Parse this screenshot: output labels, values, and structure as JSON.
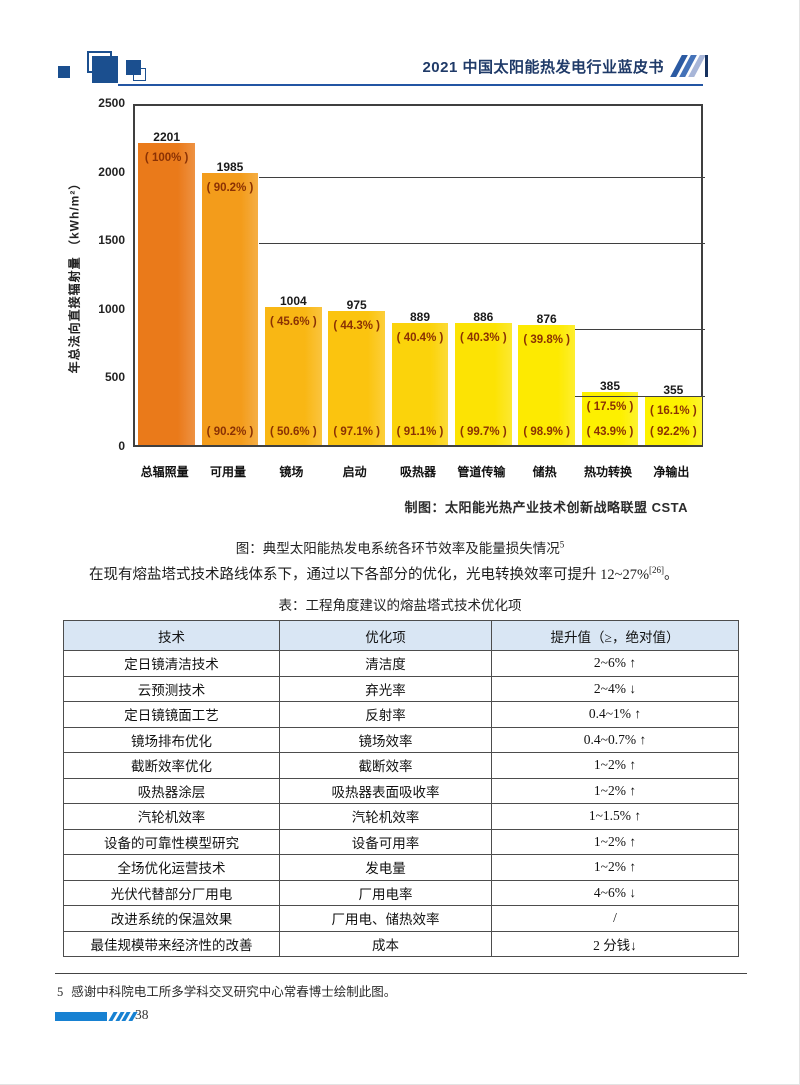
{
  "header": {
    "title": "2021 中国太阳能热发电行业蓝皮书"
  },
  "chart_data": {
    "type": "bar",
    "title": "图：典型太阳能热发电系统各环节效率及能量损失情况",
    "title_superscript": "5",
    "ylabel": "年总法向直接辐射量 （kWh/m²）",
    "ylim": [
      0,
      2500
    ],
    "yticks": [
      0,
      500,
      1000,
      1500,
      2000,
      2500
    ],
    "grid": "off",
    "attribution": "制图：太阳能光热产业技术创新战略联盟 CSTA",
    "categories": [
      "总辐照量",
      "可用量",
      "镜场",
      "启动",
      "吸热器",
      "管道传输",
      "储热",
      "热功转换",
      "净输出"
    ],
    "values": [
      2201,
      1985,
      1004,
      975,
      889,
      886,
      876,
      385,
      355
    ],
    "top_percents": [
      "( 100% )",
      "( 90.2% )",
      "( 45.6% )",
      "( 44.3% )",
      "( 40.4% )",
      "( 40.3% )",
      "( 39.8% )",
      "( 17.5% )",
      "( 16.1% )"
    ],
    "bottom_percents": [
      null,
      "( 90.2% )",
      "( 50.6% )",
      "( 97.1% )",
      "( 91.1% )",
      "( 99.7% )",
      "( 98.9% )",
      "( 43.9% )",
      "( 92.2% )"
    ],
    "bar_colors": [
      "#ea7a1a",
      "#f39c1b",
      "#f9b714",
      "#fbc40f",
      "#fbd30b",
      "#fce304",
      "#fdea01",
      "#fdf000",
      "#fdf200"
    ],
    "ref_lines": [
      {
        "value": 1985,
        "after_bar": 2
      },
      {
        "value": 1500,
        "after_bar": 2
      },
      {
        "value": 876,
        "after_bar": 7
      },
      {
        "value": 385,
        "after_bar": 7
      }
    ]
  },
  "paragraph": {
    "text": "在现有熔盐塔式技术路线体系下，通过以下各部分的优化，光电转换效率可提升 12~27%",
    "superscript": "[26]",
    "tail": "。"
  },
  "table": {
    "caption": "表：工程角度建议的熔盐塔式技术优化项",
    "headers": [
      "技术",
      "优化项",
      "提升值（≥，绝对值）"
    ],
    "rows": [
      [
        "定日镜清洁技术",
        "清洁度",
        "2~6%  ↑"
      ],
      [
        "云预测技术",
        "弃光率",
        "2~4%  ↓"
      ],
      [
        "定日镜镜面工艺",
        "反射率",
        "0.4~1%  ↑"
      ],
      [
        "镜场排布优化",
        "镜场效率",
        "0.4~0.7% ↑"
      ],
      [
        "截断效率优化",
        "截断效率",
        "1~2%  ↑"
      ],
      [
        "吸热器涂层",
        "吸热器表面吸收率",
        "1~2%  ↑"
      ],
      [
        "汽轮机效率",
        "汽轮机效率",
        "1~1.5% ↑"
      ],
      [
        "设备的可靠性模型研究",
        "设备可用率",
        "1~2%  ↑"
      ],
      [
        "全场优化运营技术",
        "发电量",
        "1~2%  ↑"
      ],
      [
        "光伏代替部分厂用电",
        "厂用电率",
        "4~6%  ↓"
      ],
      [
        "改进系统的保温效果",
        "厂用电、储热效率",
        "/"
      ],
      [
        "最佳规模带来经济性的改善",
        "成本",
        "2 分钱↓"
      ]
    ]
  },
  "footnote": {
    "marker": "5",
    "text": "感谢中科院电工所多学科交叉研究中心常春博士绘制此图。"
  },
  "footer": {
    "page_number": "38"
  }
}
